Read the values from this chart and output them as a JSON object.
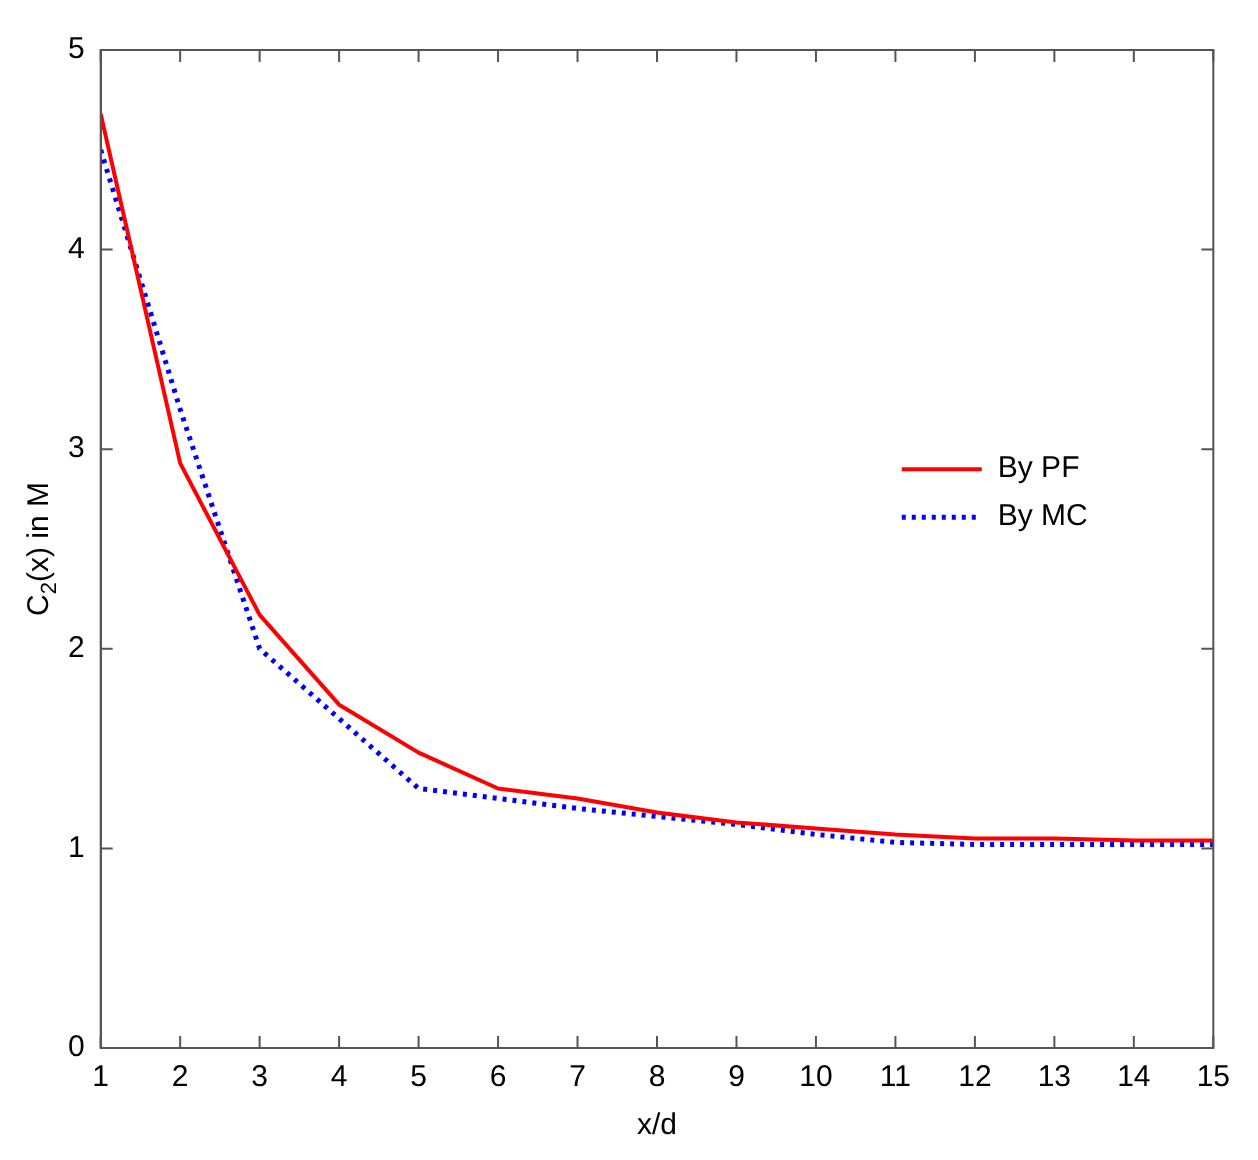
{
  "chart_data": {
    "type": "line",
    "xlabel": "x/d",
    "ylabel": "C$_{2}$(x) in M",
    "x": [
      1,
      2,
      3,
      4,
      5,
      6,
      7,
      8,
      9,
      10,
      11,
      12,
      13,
      14,
      15
    ],
    "series": [
      {
        "name": "By PF",
        "color": "#ff0000",
        "line_style": "solid",
        "values": [
          4.68,
          2.93,
          2.17,
          1.72,
          1.48,
          1.3,
          1.25,
          1.18,
          1.13,
          1.1,
          1.07,
          1.05,
          1.05,
          1.04,
          1.04
        ]
      },
      {
        "name": "By MC",
        "color": "#0000ff",
        "line_style": "dotted",
        "values": [
          4.5,
          3.2,
          2.0,
          1.65,
          1.3,
          1.25,
          1.2,
          1.16,
          1.12,
          1.07,
          1.03,
          1.02,
          1.02,
          1.02,
          1.02
        ]
      }
    ],
    "xlim": [
      1,
      15
    ],
    "xticks": [
      1,
      2,
      3,
      4,
      5,
      6,
      7,
      8,
      9,
      10,
      11,
      12,
      13,
      14,
      15
    ],
    "ylim": [
      0,
      5
    ],
    "yticks": [
      0,
      1,
      2,
      3,
      4,
      5
    ],
    "grid": false,
    "legend": "right",
    "marker": "none"
  }
}
